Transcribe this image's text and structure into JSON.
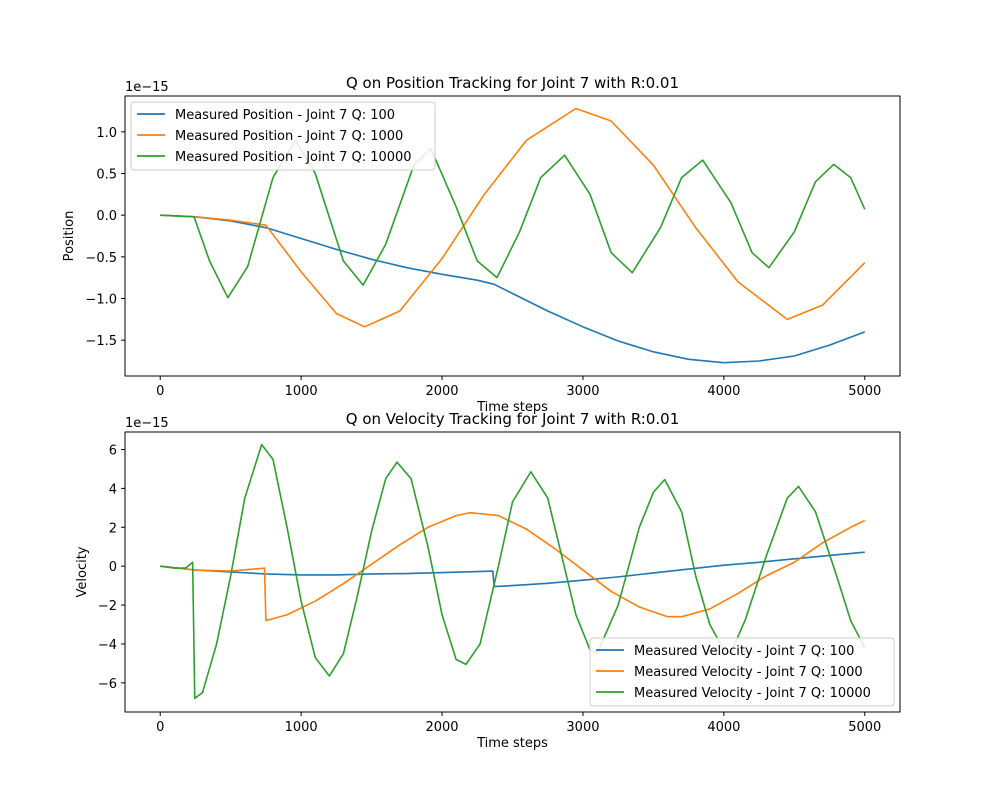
{
  "chart_data": [
    {
      "type": "line",
      "title": "Q on Position Tracking for Joint 7 with R:0.01",
      "xlabel": "Time steps",
      "ylabel": "Position",
      "scale_label": "1e−15",
      "xlim": [
        -250,
        5250
      ],
      "ylim": [
        -1.93,
        1.43
      ],
      "xticks": [
        0,
        1000,
        2000,
        3000,
        4000,
        5000
      ],
      "xtick_labels": [
        "0",
        "1000",
        "2000",
        "3000",
        "4000",
        "5000"
      ],
      "yticks": [
        -1.5,
        -1.0,
        -0.5,
        0.0,
        0.5,
        1.0
      ],
      "ytick_labels": [
        "−1.5",
        "−1.0",
        "−0.5",
        "0.0",
        "0.5",
        "1.0"
      ],
      "grid": false,
      "legend_position": "upper-left",
      "series": [
        {
          "name": "Measured Position - Joint 7 Q: 100",
          "color": "#1f77b4",
          "points": [
            [
              0,
              0
            ],
            [
              250,
              -0.02
            ],
            [
              500,
              -0.07
            ],
            [
              750,
              -0.15
            ],
            [
              1000,
              -0.28
            ],
            [
              1250,
              -0.41
            ],
            [
              1500,
              -0.53
            ],
            [
              1750,
              -0.63
            ],
            [
              2000,
              -0.71
            ],
            [
              2250,
              -0.78
            ],
            [
              2370,
              -0.83
            ],
            [
              2500,
              -0.94
            ],
            [
              2750,
              -1.15
            ],
            [
              3000,
              -1.34
            ],
            [
              3250,
              -1.51
            ],
            [
              3500,
              -1.64
            ],
            [
              3750,
              -1.73
            ],
            [
              4000,
              -1.77
            ],
            [
              4250,
              -1.75
            ],
            [
              4500,
              -1.69
            ],
            [
              4750,
              -1.56
            ],
            [
              5000,
              -1.4
            ]
          ]
        },
        {
          "name": "Measured Position - Joint 7 Q: 1000",
          "color": "#ff7f0e",
          "points": [
            [
              0,
              0
            ],
            [
              250,
              -0.02
            ],
            [
              500,
              -0.06
            ],
            [
              750,
              -0.12
            ],
            [
              1000,
              -0.68
            ],
            [
              1250,
              -1.18
            ],
            [
              1450,
              -1.34
            ],
            [
              1700,
              -1.15
            ],
            [
              2000,
              -0.52
            ],
            [
              2300,
              0.25
            ],
            [
              2600,
              0.9
            ],
            [
              2950,
              1.28
            ],
            [
              3200,
              1.13
            ],
            [
              3500,
              0.6
            ],
            [
              3800,
              -0.15
            ],
            [
              4100,
              -0.8
            ],
            [
              4450,
              -1.25
            ],
            [
              4700,
              -1.08
            ],
            [
              5000,
              -0.57
            ]
          ]
        },
        {
          "name": "Measured Position - Joint 7 Q: 10000",
          "color": "#2ca02c",
          "points": [
            [
              0,
              0
            ],
            [
              240,
              -0.02
            ],
            [
              350,
              -0.55
            ],
            [
              480,
              -0.99
            ],
            [
              620,
              -0.62
            ],
            [
              800,
              0.45
            ],
            [
              960,
              0.9
            ],
            [
              1100,
              0.5
            ],
            [
              1300,
              -0.55
            ],
            [
              1440,
              -0.84
            ],
            [
              1600,
              -0.35
            ],
            [
              1800,
              0.6
            ],
            [
              1920,
              0.8
            ],
            [
              2100,
              0.1
            ],
            [
              2250,
              -0.55
            ],
            [
              2390,
              -0.75
            ],
            [
              2550,
              -0.2
            ],
            [
              2700,
              0.45
            ],
            [
              2870,
              0.72
            ],
            [
              3050,
              0.25
            ],
            [
              3200,
              -0.45
            ],
            [
              3350,
              -0.69
            ],
            [
              3550,
              -0.15
            ],
            [
              3700,
              0.45
            ],
            [
              3850,
              0.66
            ],
            [
              4050,
              0.15
            ],
            [
              4200,
              -0.45
            ],
            [
              4320,
              -0.63
            ],
            [
              4500,
              -0.2
            ],
            [
              4650,
              0.4
            ],
            [
              4780,
              0.61
            ],
            [
              4900,
              0.45
            ],
            [
              5000,
              0.07
            ]
          ]
        }
      ]
    },
    {
      "type": "line",
      "title": "Q on Velocity Tracking for Joint 7 with R:0.01",
      "xlabel": "Time steps",
      "ylabel": "Velocity",
      "scale_label": "1e−15",
      "xlim": [
        -250,
        5250
      ],
      "ylim": [
        -7.5,
        6.9
      ],
      "xticks": [
        0,
        1000,
        2000,
        3000,
        4000,
        5000
      ],
      "xtick_labels": [
        "0",
        "1000",
        "2000",
        "3000",
        "4000",
        "5000"
      ],
      "yticks": [
        -6,
        -4,
        -2,
        0,
        2,
        4,
        6
      ],
      "ytick_labels": [
        "−6",
        "−4",
        "−2",
        "0",
        "2",
        "4",
        "6"
      ],
      "grid": false,
      "legend_position": "lower-right",
      "series": [
        {
          "name": "Measured Velocity - Joint 7 Q: 100",
          "color": "#1f77b4",
          "points": [
            [
              0,
              0
            ],
            [
              250,
              -0.2
            ],
            [
              500,
              -0.3
            ],
            [
              750,
              -0.4
            ],
            [
              1000,
              -0.45
            ],
            [
              1250,
              -0.45
            ],
            [
              1500,
              -0.4
            ],
            [
              1750,
              -0.38
            ],
            [
              2000,
              -0.33
            ],
            [
              2250,
              -0.28
            ],
            [
              2360,
              -0.25
            ],
            [
              2370,
              -1.05
            ],
            [
              2500,
              -1.0
            ],
            [
              2750,
              -0.88
            ],
            [
              3000,
              -0.72
            ],
            [
              3250,
              -0.55
            ],
            [
              3500,
              -0.35
            ],
            [
              3750,
              -0.15
            ],
            [
              4000,
              0.05
            ],
            [
              4250,
              0.2
            ],
            [
              4500,
              0.38
            ],
            [
              4750,
              0.55
            ],
            [
              5000,
              0.72
            ]
          ]
        },
        {
          "name": "Measured Velocity - Joint 7 Q: 1000",
          "color": "#ff7f0e",
          "points": [
            [
              0,
              0
            ],
            [
              250,
              -0.2
            ],
            [
              500,
              -0.25
            ],
            [
              740,
              -0.1
            ],
            [
              750,
              -2.8
            ],
            [
              900,
              -2.5
            ],
            [
              1100,
              -1.8
            ],
            [
              1300,
              -0.9
            ],
            [
              1500,
              0.1
            ],
            [
              1700,
              1.1
            ],
            [
              1900,
              2.0
            ],
            [
              2100,
              2.6
            ],
            [
              2200,
              2.75
            ],
            [
              2400,
              2.6
            ],
            [
              2600,
              1.9
            ],
            [
              2800,
              0.9
            ],
            [
              3000,
              -0.2
            ],
            [
              3200,
              -1.3
            ],
            [
              3400,
              -2.1
            ],
            [
              3600,
              -2.6
            ],
            [
              3700,
              -2.6
            ],
            [
              3900,
              -2.2
            ],
            [
              4100,
              -1.4
            ],
            [
              4300,
              -0.5
            ],
            [
              4500,
              0.2
            ],
            [
              4700,
              1.2
            ],
            [
              4900,
              2.0
            ],
            [
              5000,
              2.35
            ]
          ]
        },
        {
          "name": "Measured Velocity - Joint 7 Q: 10000",
          "color": "#2ca02c",
          "points": [
            [
              0,
              0
            ],
            [
              100,
              -0.1
            ],
            [
              180,
              -0.1
            ],
            [
              230,
              0.2
            ],
            [
              245,
              -6.8
            ],
            [
              300,
              -6.5
            ],
            [
              400,
              -4.0
            ],
            [
              500,
              -0.5
            ],
            [
              600,
              3.5
            ],
            [
              720,
              6.25
            ],
            [
              800,
              5.5
            ],
            [
              900,
              2.0
            ],
            [
              1000,
              -1.8
            ],
            [
              1100,
              -4.7
            ],
            [
              1200,
              -5.65
            ],
            [
              1300,
              -4.5
            ],
            [
              1400,
              -1.5
            ],
            [
              1500,
              1.8
            ],
            [
              1600,
              4.5
            ],
            [
              1680,
              5.35
            ],
            [
              1780,
              4.5
            ],
            [
              1900,
              1.0
            ],
            [
              2000,
              -2.5
            ],
            [
              2100,
              -4.8
            ],
            [
              2170,
              -5.05
            ],
            [
              2270,
              -4.0
            ],
            [
              2400,
              0.0
            ],
            [
              2500,
              3.3
            ],
            [
              2630,
              4.85
            ],
            [
              2750,
              3.5
            ],
            [
              2850,
              0.5
            ],
            [
              2950,
              -2.5
            ],
            [
              3050,
              -4.3
            ],
            [
              3100,
              -4.5
            ],
            [
              3250,
              -2.0
            ],
            [
              3400,
              2.0
            ],
            [
              3500,
              3.8
            ],
            [
              3580,
              4.45
            ],
            [
              3700,
              2.8
            ],
            [
              3800,
              -0.5
            ],
            [
              3900,
              -3.0
            ],
            [
              4000,
              -4.3
            ],
            [
              4050,
              -4.45
            ],
            [
              4150,
              -2.8
            ],
            [
              4300,
              0.5
            ],
            [
              4450,
              3.5
            ],
            [
              4530,
              4.1
            ],
            [
              4650,
              2.8
            ],
            [
              4800,
              -0.5
            ],
            [
              4900,
              -2.8
            ],
            [
              5000,
              -4.2
            ]
          ]
        }
      ]
    }
  ]
}
